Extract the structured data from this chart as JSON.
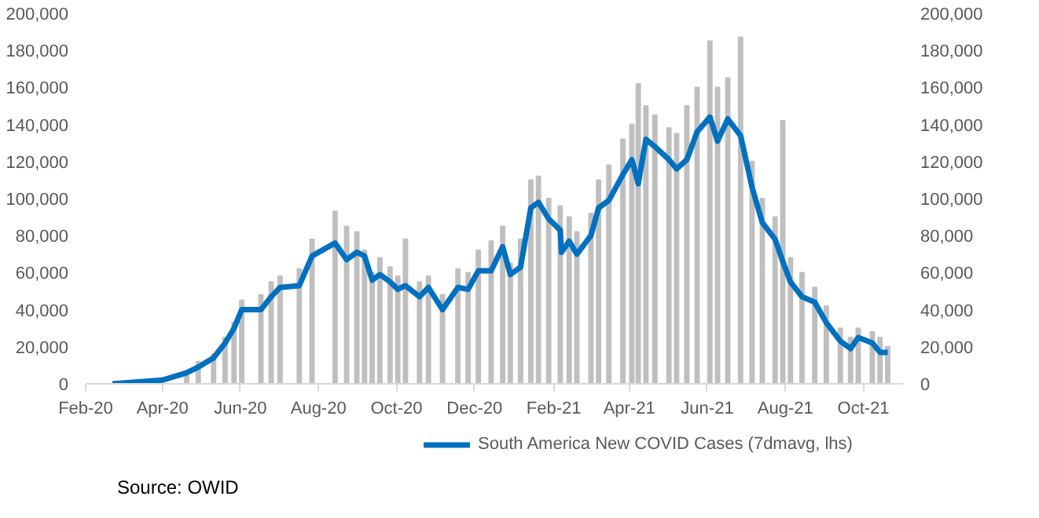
{
  "chart_data": {
    "type": "line",
    "annotations": [
      "Source: OWID"
    ],
    "xlim": [
      "2020-02-01",
      "2021-11-01"
    ],
    "xticks": [
      {
        "value": "2020-02-01",
        "label": "Feb-20"
      },
      {
        "value": "2020-04-01",
        "label": "Apr-20"
      },
      {
        "value": "2020-06-01",
        "label": "Jun-20"
      },
      {
        "value": "2020-08-01",
        "label": "Aug-20"
      },
      {
        "value": "2020-10-01",
        "label": "Oct-20"
      },
      {
        "value": "2020-12-01",
        "label": "Dec-20"
      },
      {
        "value": "2021-02-01",
        "label": "Feb-21"
      },
      {
        "value": "2021-04-01",
        "label": "Apr-21"
      },
      {
        "value": "2021-06-01",
        "label": "Jun-21"
      },
      {
        "value": "2021-08-01",
        "label": "Aug-21"
      },
      {
        "value": "2021-10-01",
        "label": "Oct-21"
      }
    ],
    "ylim": [
      0,
      200000
    ],
    "yticks": [
      0,
      {
        "value": 20000,
        "label": "20,000"
      },
      {
        "value": 40000,
        "label": "40,000"
      },
      {
        "value": 60000,
        "label": "60,000"
      },
      {
        "value": 80000,
        "label": "80,000"
      },
      {
        "value": 100000,
        "label": "100,000"
      },
      {
        "value": 120000,
        "label": "120,000"
      },
      {
        "value": 140000,
        "label": "140,000"
      },
      {
        "value": 160000,
        "label": "160,000"
      },
      {
        "value": 180000,
        "label": "180,000"
      },
      {
        "value": 200000,
        "label": "200,000"
      }
    ],
    "y2lim": [
      0,
      200000
    ],
    "y2ticks": [
      0,
      {
        "value": 20000,
        "label": "20,000"
      },
      {
        "value": 40000,
        "label": "40,000"
      },
      {
        "value": 60000,
        "label": "60,000"
      },
      {
        "value": 80000,
        "label": "80,000"
      },
      {
        "value": 100000,
        "label": "100,000"
      },
      {
        "value": 120000,
        "label": "120,000"
      },
      {
        "value": 140000,
        "label": "140,000"
      },
      {
        "value": 160000,
        "label": "160,000"
      },
      {
        "value": 180000,
        "label": "180,000"
      },
      {
        "value": 200000,
        "label": "200,000"
      }
    ],
    "x": [
      "2020-02-22",
      "2020-04-01",
      "2020-04-20",
      "2020-04-29",
      "2020-05-11",
      "2020-05-20",
      "2020-05-27",
      "2020-06-02",
      "2020-06-17",
      "2020-06-25",
      "2020-07-02",
      "2020-07-17",
      "2020-07-27",
      "2020-08-14",
      "2020-08-23",
      "2020-08-31",
      "2020-09-06",
      "2020-09-12",
      "2020-09-18",
      "2020-09-26",
      "2020-10-02",
      "2020-10-08",
      "2020-10-19",
      "2020-10-26",
      "2020-11-06",
      "2020-11-18",
      "2020-11-26",
      "2020-12-04",
      "2020-12-14",
      "2020-12-23",
      "2020-12-29",
      "2021-01-06",
      "2021-01-14",
      "2021-01-20",
      "2021-01-28",
      "2021-02-06",
      "2021-02-07",
      "2021-02-13",
      "2021-02-19",
      "2021-03-02",
      "2021-03-08",
      "2021-03-16",
      "2021-03-27",
      "2021-04-03",
      "2021-04-08",
      "2021-04-14",
      "2021-04-21",
      "2021-05-02",
      "2021-05-08",
      "2021-05-16",
      "2021-05-24",
      "2021-06-03",
      "2021-06-09",
      "2021-06-17",
      "2021-06-27",
      "2021-07-06",
      "2021-07-14",
      "2021-07-24",
      "2021-07-30",
      "2021-08-05",
      "2021-08-14",
      "2021-08-24",
      "2021-09-02",
      "2021-09-13",
      "2021-09-21",
      "2021-09-27",
      "2021-10-08",
      "2021-10-14",
      "2021-10-20"
    ],
    "series": [
      {
        "type": "bar",
        "color": "#bfbfbf",
        "values": [
          0,
          null,
          7000,
          12000,
          16000,
          25000,
          33000,
          45000,
          48000,
          55000,
          58000,
          62000,
          78000,
          93000,
          85000,
          82000,
          72000,
          60000,
          68000,
          63000,
          58000,
          78000,
          55000,
          58000,
          48000,
          62000,
          60000,
          72000,
          77000,
          85000,
          65000,
          78000,
          110000,
          112000,
          100000,
          96000,
          null,
          90000,
          82000,
          92000,
          110000,
          118000,
          132000,
          140000,
          162000,
          150000,
          145000,
          138000,
          135000,
          150000,
          160000,
          185000,
          160000,
          165000,
          187000,
          120000,
          100000,
          90000,
          142000,
          68000,
          60000,
          52000,
          42000,
          30000,
          25000,
          30000,
          28000,
          25000,
          20000
        ]
      },
      {
        "name": "South America New COVID Cases (7dmavg, lhs)",
        "color": "#0070c0",
        "values": [
          0,
          2000,
          6000,
          9000,
          14000,
          22000,
          30000,
          40000,
          40000,
          47000,
          52000,
          53000,
          69000,
          76000,
          67000,
          71000,
          69000,
          56000,
          59000,
          55000,
          51000,
          53000,
          47000,
          52000,
          40000,
          52000,
          51000,
          61000,
          61000,
          74000,
          59000,
          63000,
          95000,
          98000,
          89000,
          83000,
          71000,
          77000,
          70000,
          80000,
          95000,
          99000,
          113000,
          121000,
          108000,
          132000,
          128000,
          121000,
          116000,
          121000,
          136000,
          144000,
          131000,
          143000,
          134000,
          106000,
          87000,
          78000,
          66000,
          55000,
          47000,
          44000,
          33000,
          23000,
          19000,
          25000,
          22000,
          17000,
          17000
        ]
      }
    ],
    "grid": false,
    "legend": "bottom"
  }
}
